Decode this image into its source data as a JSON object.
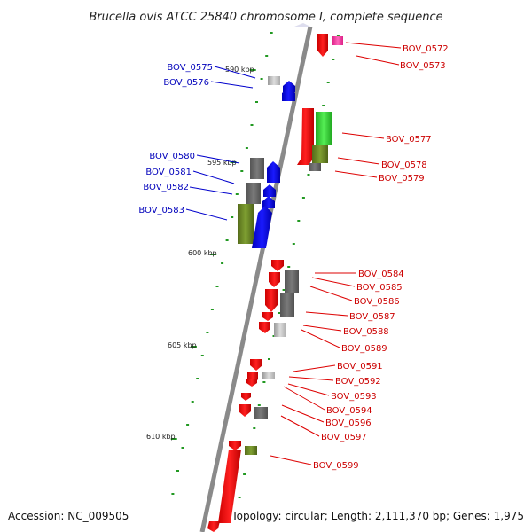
{
  "title": "Brucella ovis ATCC 25840 chromosome I, complete sequence",
  "footer": {
    "accession": "Accession: NC_009505",
    "topology": "Topology: circular; Length: 2,111,370 bp; Genes: 1,975"
  },
  "colors": {
    "plus_strand_label": "#cc0000",
    "minus_strand_label": "#0000bb",
    "gene_red": "#ff0000",
    "gene_blue": "#0000ff",
    "gene_gray": "#666666",
    "gene_olive": "#6b8e23",
    "gene_green": "#33cc33",
    "gene_pink": "#ff44aa",
    "tick_green": "#229922",
    "axis_gray": "#888888"
  },
  "ruler_labels": [
    {
      "text": "590 kbp"
    },
    {
      "text": "595 kbp"
    },
    {
      "text": "600 kbp"
    },
    {
      "text": "605 kbp"
    },
    {
      "text": "610 kbp"
    }
  ],
  "genes": [
    {
      "id": "BOV_0572",
      "strand": "plus",
      "color": "pink"
    },
    {
      "id": "BOV_0573",
      "strand": "plus",
      "color": "gray"
    },
    {
      "id": "BOV_0575",
      "strand": "minus",
      "color": "gray"
    },
    {
      "id": "BOV_0576",
      "strand": "minus",
      "color": "blue"
    },
    {
      "id": "BOV_0577",
      "strand": "plus",
      "color": "green"
    },
    {
      "id": "BOV_0578",
      "strand": "plus",
      "color": "olive"
    },
    {
      "id": "BOV_0579",
      "strand": "plus",
      "color": "gray"
    },
    {
      "id": "BOV_0580",
      "strand": "minus",
      "color": "gray"
    },
    {
      "id": "BOV_0581",
      "strand": "minus",
      "color": "blue"
    },
    {
      "id": "BOV_0582",
      "strand": "minus",
      "color": "gray"
    },
    {
      "id": "BOV_0583",
      "strand": "minus",
      "color": "olive"
    },
    {
      "id": "BOV_0584",
      "strand": "plus",
      "color": "red"
    },
    {
      "id": "BOV_0585",
      "strand": "plus",
      "color": "gray"
    },
    {
      "id": "BOV_0586",
      "strand": "plus",
      "color": "gray"
    },
    {
      "id": "BOV_0587",
      "strand": "plus",
      "color": "red"
    },
    {
      "id": "BOV_0588",
      "strand": "plus",
      "color": "red"
    },
    {
      "id": "BOV_0589",
      "strand": "plus",
      "color": "gray"
    },
    {
      "id": "BOV_0591",
      "strand": "plus",
      "color": "red"
    },
    {
      "id": "BOV_0592",
      "strand": "plus",
      "color": "gray"
    },
    {
      "id": "BOV_0593",
      "strand": "plus",
      "color": "red"
    },
    {
      "id": "BOV_0594",
      "strand": "plus",
      "color": "red"
    },
    {
      "id": "BOV_0596",
      "strand": "plus",
      "color": "gray"
    },
    {
      "id": "BOV_0597",
      "strand": "plus",
      "color": "red"
    },
    {
      "id": "BOV_0599",
      "strand": "plus",
      "color": "olive"
    }
  ]
}
